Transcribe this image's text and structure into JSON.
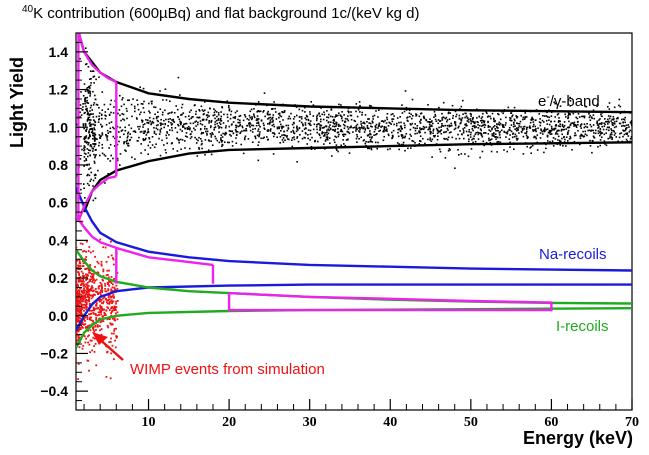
{
  "figure": {
    "title_sup": "40",
    "title_rest": "K contribution (600µBq) and flat background 1c/(keV kg d)",
    "x_title": "Energy (keV)",
    "y_title": "Light Yield"
  },
  "annotations": {
    "egamma_sup": "-",
    "egamma_pre": "e",
    "egamma_post": "/γ-band",
    "na": "Na-recoils",
    "i": "I-recoils",
    "wimp": "WIMP events from simulation"
  },
  "colors": {
    "egamma": "#000000",
    "na": "#1a1adc",
    "i": "#1faa1f",
    "roi": "#ee22ee",
    "wimp": "#ee1111"
  },
  "chart_data": {
    "type": "scatter",
    "x_range": [
      1,
      70
    ],
    "y_range": [
      -0.5,
      1.5
    ],
    "x_ticks": [
      10,
      20,
      30,
      40,
      50,
      60,
      70
    ],
    "y_ticks": [
      -0.4,
      -0.2,
      0.0,
      0.2,
      0.4,
      0.6,
      0.8,
      1.0,
      1.2,
      1.4
    ],
    "y_tick_labels": [
      "−0.4",
      "−0.2",
      "0.0",
      "0.2",
      "0.4",
      "0.6",
      "0.8",
      "1.0",
      "1.2",
      "1.4"
    ],
    "bands": [
      {
        "name": "e-/γ-band",
        "center": 1.0,
        "upper": [
          [
            1,
            1.55
          ],
          [
            2,
            1.4
          ],
          [
            4,
            1.29
          ],
          [
            6,
            1.24
          ],
          [
            10,
            1.18
          ],
          [
            15,
            1.15
          ],
          [
            20,
            1.13
          ],
          [
            30,
            1.11
          ],
          [
            40,
            1.1
          ],
          [
            50,
            1.09
          ],
          [
            60,
            1.085
          ],
          [
            70,
            1.08
          ]
        ],
        "lower": [
          [
            2,
            0.55
          ],
          [
            3,
            0.66
          ],
          [
            4,
            0.72
          ],
          [
            6,
            0.77
          ],
          [
            10,
            0.82
          ],
          [
            15,
            0.86
          ],
          [
            20,
            0.88
          ],
          [
            30,
            0.89
          ],
          [
            40,
            0.9
          ],
          [
            50,
            0.91
          ],
          [
            60,
            0.915
          ],
          [
            70,
            0.92
          ]
        ]
      },
      {
        "name": "Na-recoils",
        "upper": [
          [
            1,
            0.68
          ],
          [
            2,
            0.58
          ],
          [
            3,
            0.5
          ],
          [
            4,
            0.44
          ],
          [
            6,
            0.39
          ],
          [
            10,
            0.34
          ],
          [
            15,
            0.31
          ],
          [
            20,
            0.29
          ],
          [
            30,
            0.27
          ],
          [
            40,
            0.26
          ],
          [
            50,
            0.25
          ],
          [
            60,
            0.245
          ],
          [
            70,
            0.24
          ]
        ],
        "lower": [
          [
            1,
            -0.08
          ],
          [
            2,
            0.0
          ],
          [
            3,
            0.06
          ],
          [
            4,
            0.1
          ],
          [
            6,
            0.13
          ],
          [
            10,
            0.15
          ],
          [
            20,
            0.16
          ],
          [
            30,
            0.165
          ],
          [
            50,
            0.165
          ],
          [
            70,
            0.165
          ]
        ]
      },
      {
        "name": "I-recoils",
        "upper": [
          [
            1,
            0.35
          ],
          [
            2,
            0.29
          ],
          [
            3,
            0.24
          ],
          [
            4,
            0.21
          ],
          [
            6,
            0.18
          ],
          [
            10,
            0.15
          ],
          [
            15,
            0.13
          ],
          [
            20,
            0.12
          ],
          [
            30,
            0.1
          ],
          [
            40,
            0.085
          ],
          [
            50,
            0.075
          ],
          [
            60,
            0.068
          ],
          [
            70,
            0.065
          ]
        ],
        "lower": [
          [
            1,
            -0.17
          ],
          [
            2,
            -0.09
          ],
          [
            3,
            -0.05
          ],
          [
            4,
            -0.02
          ],
          [
            6,
            0.0
          ],
          [
            10,
            0.015
          ],
          [
            20,
            0.025
          ],
          [
            30,
            0.03
          ],
          [
            50,
            0.035
          ],
          [
            70,
            0.04
          ]
        ]
      }
    ],
    "roi_boxes": [
      {
        "name": "e/γ ROI",
        "x": [
          1,
          6
        ]
      },
      {
        "name": "Na ROI",
        "x": [
          6,
          18
        ]
      },
      {
        "name": "I ROI",
        "x": [
          20,
          60
        ]
      }
    ],
    "scatter_series": [
      {
        "name": "e/γ events",
        "description_points": "~2400 black dots in y 0.55–1.45, x 1–70"
      },
      {
        "name": "WIMP events from simulation",
        "description_points": "~700 red dots in y −0.35–0.45, x 1–6"
      }
    ],
    "grid": false,
    "legend": "none"
  }
}
